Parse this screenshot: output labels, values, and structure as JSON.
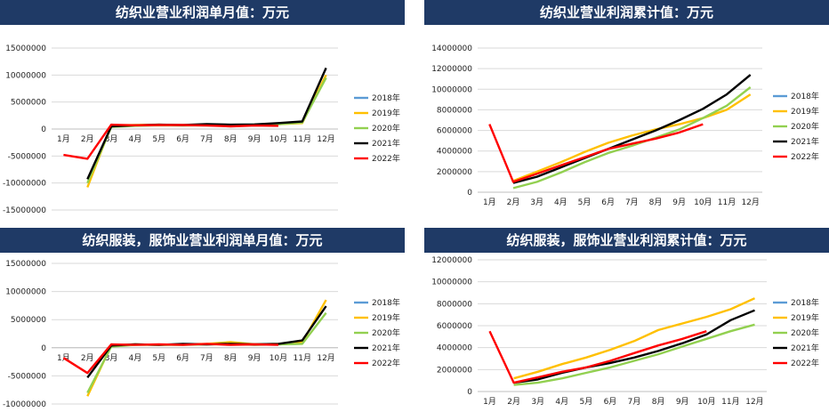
{
  "colors": {
    "banner": "#1f3a66",
    "s2018": "#5b9bd5",
    "s2019": "#ffc000",
    "s2020": "#92d050",
    "s2021": "#000000",
    "s2022": "#ff0000",
    "grid": "#d9d9d9"
  },
  "chart_data": [
    {
      "type": "line",
      "title": "纺织业营业利润单月值：万元",
      "categories": [
        "1月",
        "2月",
        "3月",
        "4月",
        "5月",
        "6月",
        "7月",
        "8月",
        "9月",
        "10月",
        "11月",
        "12月"
      ],
      "ylim": [
        -15000000,
        15000000
      ],
      "yticks": [
        "15000000",
        "10000000",
        "5000000",
        "0",
        "-5000000",
        "-10000000",
        "-15000000"
      ],
      "ytick_values": [
        15000000,
        10000000,
        5000000,
        0,
        -5000000,
        -10000000,
        -15000000
      ],
      "grid": true,
      "axis_at_zero": true,
      "legend_position": "right",
      "series": [
        {
          "name": "2018年",
          "key": "s2018",
          "values": [
            null,
            null,
            null,
            null,
            null,
            null,
            null,
            null,
            null,
            null,
            null,
            null
          ]
        },
        {
          "name": "2019年",
          "key": "s2019",
          "values": [
            null,
            -10800000,
            700000,
            750000,
            800000,
            700000,
            750000,
            700000,
            800000,
            900000,
            1100000,
            10000000
          ]
        },
        {
          "name": "2020年",
          "key": "s2020",
          "values": [
            null,
            -10000000,
            400000,
            600000,
            700000,
            650000,
            700000,
            650000,
            750000,
            900000,
            1200000,
            9500000
          ]
        },
        {
          "name": "2021年",
          "key": "s2021",
          "values": [
            null,
            -9300000,
            500000,
            700000,
            800000,
            750000,
            900000,
            800000,
            850000,
            1100000,
            1400000,
            11300000
          ]
        },
        {
          "name": "2022年",
          "key": "s2022",
          "values": [
            -4800000,
            -5500000,
            800000,
            700000,
            750000,
            750000,
            650000,
            500000,
            650000,
            600000,
            null,
            null
          ]
        }
      ]
    },
    {
      "type": "line",
      "title": "纺织业营业利润累计值：万元",
      "categories": [
        "1月",
        "2月",
        "3月",
        "4月",
        "5月",
        "6月",
        "7月",
        "8月",
        "9月",
        "10月",
        "11月",
        "12月"
      ],
      "ylim": [
        0,
        14000000
      ],
      "yticks": [
        "14000000",
        "12000000",
        "10000000",
        "8000000",
        "6000000",
        "4000000",
        "2000000",
        "0"
      ],
      "ytick_values": [
        14000000,
        12000000,
        10000000,
        8000000,
        6000000,
        4000000,
        2000000,
        0
      ],
      "grid": true,
      "axis_at_zero": false,
      "legend_position": "right",
      "series": [
        {
          "name": "2018年",
          "key": "s2018",
          "values": [
            null,
            null,
            null,
            null,
            null,
            null,
            null,
            null,
            null,
            null,
            null,
            null
          ]
        },
        {
          "name": "2019年",
          "key": "s2019",
          "values": [
            null,
            1100000,
            2000000,
            2900000,
            3900000,
            4800000,
            5500000,
            6100000,
            6600000,
            7200000,
            8000000,
            9500000
          ]
        },
        {
          "name": "2020年",
          "key": "s2020",
          "values": [
            null,
            400000,
            1000000,
            1900000,
            2900000,
            3800000,
            4500000,
            5300000,
            6100000,
            7200000,
            8400000,
            10200000
          ]
        },
        {
          "name": "2021年",
          "key": "s2021",
          "values": [
            null,
            900000,
            1500000,
            2400000,
            3300000,
            4200000,
            5100000,
            6000000,
            7000000,
            8100000,
            9500000,
            11400000
          ]
        },
        {
          "name": "2022年",
          "key": "s2022",
          "values": [
            6600000,
            1000000,
            1800000,
            2600000,
            3400000,
            4200000,
            4700000,
            5200000,
            5800000,
            6600000,
            null,
            null
          ]
        }
      ]
    },
    {
      "type": "line",
      "title": "纺织服装，服饰业营业利润单月值：万元",
      "categories": [
        "1月",
        "2月",
        "3月",
        "4月",
        "5月",
        "6月",
        "7月",
        "8月",
        "9月",
        "10月",
        "11月",
        "12月"
      ],
      "ylim": [
        -10000000,
        15000000
      ],
      "yticks": [
        "15000000",
        "10000000",
        "5000000",
        "0",
        "-5000000",
        "-10000000"
      ],
      "ytick_values": [
        15000000,
        10000000,
        5000000,
        0,
        -5000000,
        -10000000
      ],
      "grid": true,
      "axis_at_zero": true,
      "legend_position": "right",
      "series": [
        {
          "name": "2018年",
          "key": "s2018",
          "values": [
            null,
            null,
            null,
            null,
            null,
            null,
            null,
            null,
            null,
            null,
            null,
            null
          ]
        },
        {
          "name": "2019年",
          "key": "s2019",
          "values": [
            null,
            -8600000,
            400000,
            600000,
            500000,
            600000,
            700000,
            1000000,
            600000,
            700000,
            900000,
            8500000
          ]
        },
        {
          "name": "2020年",
          "key": "s2020",
          "values": [
            null,
            -8000000,
            200000,
            500000,
            500000,
            500000,
            600000,
            700000,
            500000,
            600000,
            700000,
            6200000
          ]
        },
        {
          "name": "2021年",
          "key": "s2021",
          "values": [
            null,
            -5300000,
            400000,
            600000,
            500000,
            700000,
            600000,
            700000,
            600000,
            700000,
            1300000,
            7400000
          ]
        },
        {
          "name": "2022年",
          "key": "s2022",
          "values": [
            -1800000,
            -4500000,
            600000,
            500000,
            600000,
            500000,
            700000,
            500000,
            600000,
            500000,
            null,
            null
          ]
        }
      ]
    },
    {
      "type": "line",
      "title": "纺织服装，服饰业营业利润累计值：万元",
      "categories": [
        "1月",
        "2月",
        "3月",
        "4月",
        "5月",
        "6月",
        "7月",
        "8月",
        "9月",
        "10月",
        "11月",
        "12月"
      ],
      "ylim": [
        0,
        12000000
      ],
      "yticks": [
        "12000000",
        "10000000",
        "8000000",
        "6000000",
        "4000000",
        "2000000",
        "0"
      ],
      "ytick_values": [
        12000000,
        10000000,
        8000000,
        6000000,
        4000000,
        2000000,
        0
      ],
      "grid": true,
      "axis_at_zero": false,
      "legend_position": "right",
      "series": [
        {
          "name": "2018年",
          "key": "s2018",
          "values": [
            null,
            null,
            null,
            null,
            null,
            null,
            null,
            null,
            null,
            null,
            null,
            null
          ]
        },
        {
          "name": "2019年",
          "key": "s2019",
          "values": [
            null,
            1200000,
            1800000,
            2500000,
            3100000,
            3800000,
            4600000,
            5600000,
            6200000,
            6800000,
            7500000,
            8500000
          ]
        },
        {
          "name": "2020年",
          "key": "s2020",
          "values": [
            null,
            600000,
            800000,
            1200000,
            1700000,
            2200000,
            2800000,
            3400000,
            4100000,
            4800000,
            5500000,
            6100000
          ]
        },
        {
          "name": "2021年",
          "key": "s2021",
          "values": [
            null,
            800000,
            1100000,
            1700000,
            2200000,
            2600000,
            3100000,
            3700000,
            4400000,
            5200000,
            6500000,
            7400000
          ]
        },
        {
          "name": "2022年",
          "key": "s2022",
          "values": [
            5500000,
            800000,
            1300000,
            1800000,
            2200000,
            2800000,
            3500000,
            4200000,
            4800000,
            5500000,
            null,
            null
          ]
        }
      ]
    }
  ]
}
